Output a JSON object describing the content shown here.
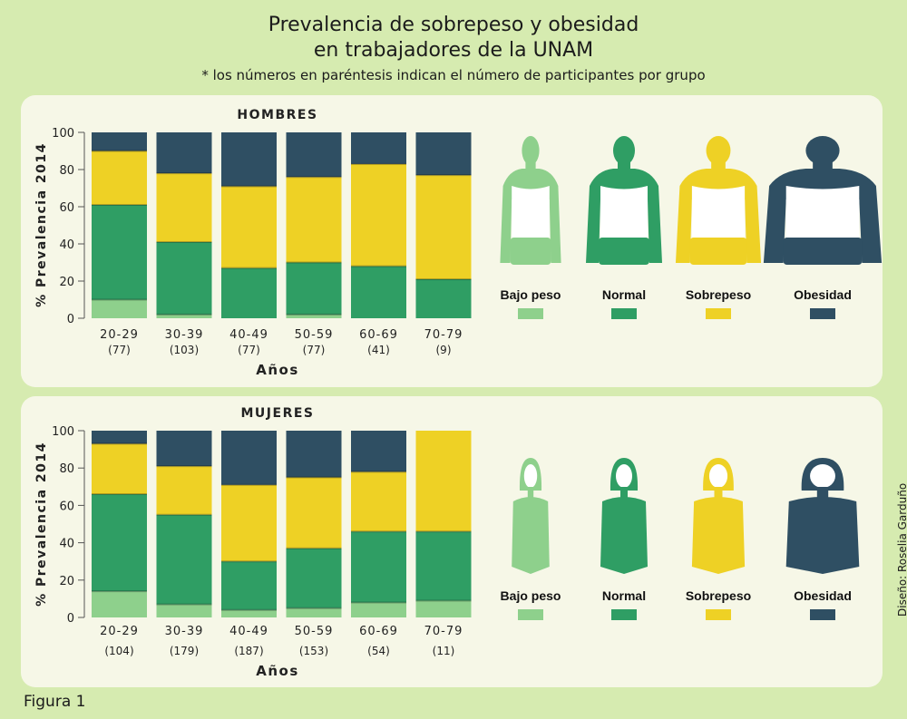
{
  "header": {
    "title_line1": "Prevalencia de sobrepeso y obesidad",
    "title_line2": "en trabajadores de la UNAM",
    "note": "* los números en paréntesis indican el número de participantes por grupo"
  },
  "figure_label": "Figura 1",
  "credit": "Diseño: Roselia Garduño",
  "colors": {
    "bajo_peso": "#8ed08c",
    "normal": "#2f9e64",
    "sobrepeso": "#eed125",
    "obesidad": "#2f4f63"
  },
  "legend": [
    {
      "key": "bajo_peso",
      "label": "Bajo peso",
      "icon": "underweight-figure-icon"
    },
    {
      "key": "normal",
      "label": "Normal",
      "icon": "normal-weight-figure-icon"
    },
    {
      "key": "sobrepeso",
      "label": "Sobrepeso",
      "icon": "overweight-figure-icon"
    },
    {
      "key": "obesidad",
      "label": "Obesidad",
      "icon": "obese-figure-icon"
    }
  ],
  "chart_data": [
    {
      "type": "bar",
      "stacked": true,
      "title": "HOMBRES",
      "xlabel": "Años",
      "ylabel": "% Prevalencia 2014",
      "ylim": [
        0,
        100
      ],
      "yticks": [
        "0",
        "20",
        "40",
        "60",
        "80",
        "100"
      ],
      "categories": [
        "20-29",
        "30-39",
        "40-49",
        "50-59",
        "60-69",
        "70-79"
      ],
      "n_labels": [
        "(77)",
        "(103)",
        "(77)",
        "(77)",
        "(41)",
        "(9)"
      ],
      "series": [
        {
          "name": "Bajo peso",
          "values": [
            10,
            2,
            0,
            2,
            0,
            0
          ]
        },
        {
          "name": "Normal",
          "values": [
            51,
            39,
            27,
            28,
            28,
            21
          ]
        },
        {
          "name": "Sobrepeso",
          "values": [
            29,
            37,
            44,
            46,
            55,
            56
          ]
        },
        {
          "name": "Obesidad",
          "values": [
            10,
            22,
            29,
            24,
            17,
            23
          ]
        }
      ]
    },
    {
      "type": "bar",
      "stacked": true,
      "title": "MUJERES",
      "xlabel": "Años",
      "ylabel": "% Prevalencia 2014",
      "ylim": [
        0,
        100
      ],
      "yticks": [
        "0",
        "20",
        "40",
        "60",
        "80",
        "100"
      ],
      "categories": [
        "20-29",
        "30-39",
        "40-49",
        "50-59",
        "60-69",
        "70-79"
      ],
      "n_labels": [
        "(104)",
        "(179)",
        "(187)",
        "(153)",
        "(54)",
        "(11)"
      ],
      "series": [
        {
          "name": "Bajo peso",
          "values": [
            14,
            7,
            4,
            5,
            8,
            9
          ]
        },
        {
          "name": "Normal",
          "values": [
            52,
            48,
            26,
            32,
            38,
            37
          ]
        },
        {
          "name": "Sobrepeso",
          "values": [
            27,
            26,
            41,
            38,
            32,
            54
          ]
        },
        {
          "name": "Obesidad",
          "values": [
            7,
            19,
            29,
            25,
            22,
            0
          ]
        }
      ]
    }
  ]
}
